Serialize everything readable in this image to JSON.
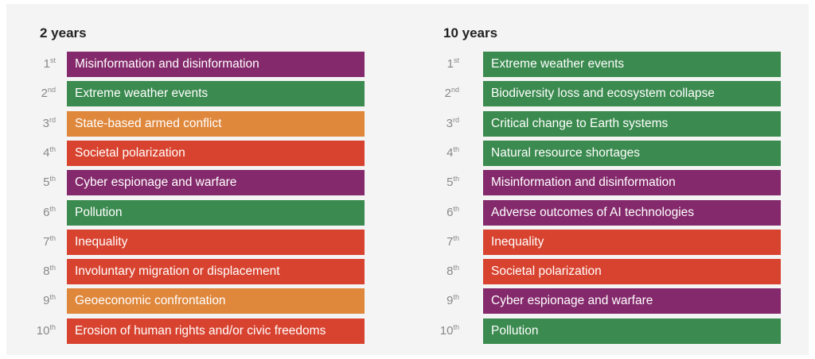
{
  "columns": [
    {
      "title": "2 years",
      "items": [
        {
          "rank": {
            "number": "1",
            "suffix": "st"
          },
          "label": "Misinformation and disinformation",
          "color": "#84296b"
        },
        {
          "rank": {
            "number": "2",
            "suffix": "nd"
          },
          "label": "Extreme weather events",
          "color": "#3b8a4f"
        },
        {
          "rank": {
            "number": "3",
            "suffix": "rd"
          },
          "label": "State-based armed conflict",
          "color": "#df873b"
        },
        {
          "rank": {
            "number": "4",
            "suffix": "th"
          },
          "label": "Societal polarization",
          "color": "#d8432f"
        },
        {
          "rank": {
            "number": "5",
            "suffix": "th"
          },
          "label": "Cyber espionage and warfare",
          "color": "#84296b"
        },
        {
          "rank": {
            "number": "6",
            "suffix": "th"
          },
          "label": "Pollution",
          "color": "#3b8a4f"
        },
        {
          "rank": {
            "number": "7",
            "suffix": "th"
          },
          "label": "Inequality",
          "color": "#d8432f"
        },
        {
          "rank": {
            "number": "8",
            "suffix": "th"
          },
          "label": "Involuntary migration or displacement",
          "color": "#d8432f"
        },
        {
          "rank": {
            "number": "9",
            "suffix": "th"
          },
          "label": "Geoeconomic confrontation",
          "color": "#df873b"
        },
        {
          "rank": {
            "number": "10",
            "suffix": "th"
          },
          "label": "Erosion of human rights and/or civic freedoms",
          "color": "#d8432f"
        }
      ]
    },
    {
      "title": "10 years",
      "items": [
        {
          "rank": {
            "number": "1",
            "suffix": "st"
          },
          "label": "Extreme weather events",
          "color": "#3b8a4f"
        },
        {
          "rank": {
            "number": "2",
            "suffix": "nd"
          },
          "label": "Biodiversity loss and ecosystem collapse",
          "color": "#3b8a4f"
        },
        {
          "rank": {
            "number": "3",
            "suffix": "rd"
          },
          "label": "Critical change to Earth systems",
          "color": "#3b8a4f"
        },
        {
          "rank": {
            "number": "4",
            "suffix": "th"
          },
          "label": "Natural resource shortages",
          "color": "#3b8a4f"
        },
        {
          "rank": {
            "number": "5",
            "suffix": "th"
          },
          "label": "Misinformation and disinformation",
          "color": "#84296b"
        },
        {
          "rank": {
            "number": "6",
            "suffix": "th"
          },
          "label": "Adverse outcomes of AI technologies",
          "color": "#84296b"
        },
        {
          "rank": {
            "number": "7",
            "suffix": "th"
          },
          "label": "Inequality",
          "color": "#d8432f"
        },
        {
          "rank": {
            "number": "8",
            "suffix": "th"
          },
          "label": "Societal polarization",
          "color": "#d8432f"
        },
        {
          "rank": {
            "number": "9",
            "suffix": "th"
          },
          "label": "Cyber espionage and warfare",
          "color": "#84296b"
        },
        {
          "rank": {
            "number": "10",
            "suffix": "th"
          },
          "label": "Pollution",
          "color": "#3b8a4f"
        }
      ]
    }
  ]
}
